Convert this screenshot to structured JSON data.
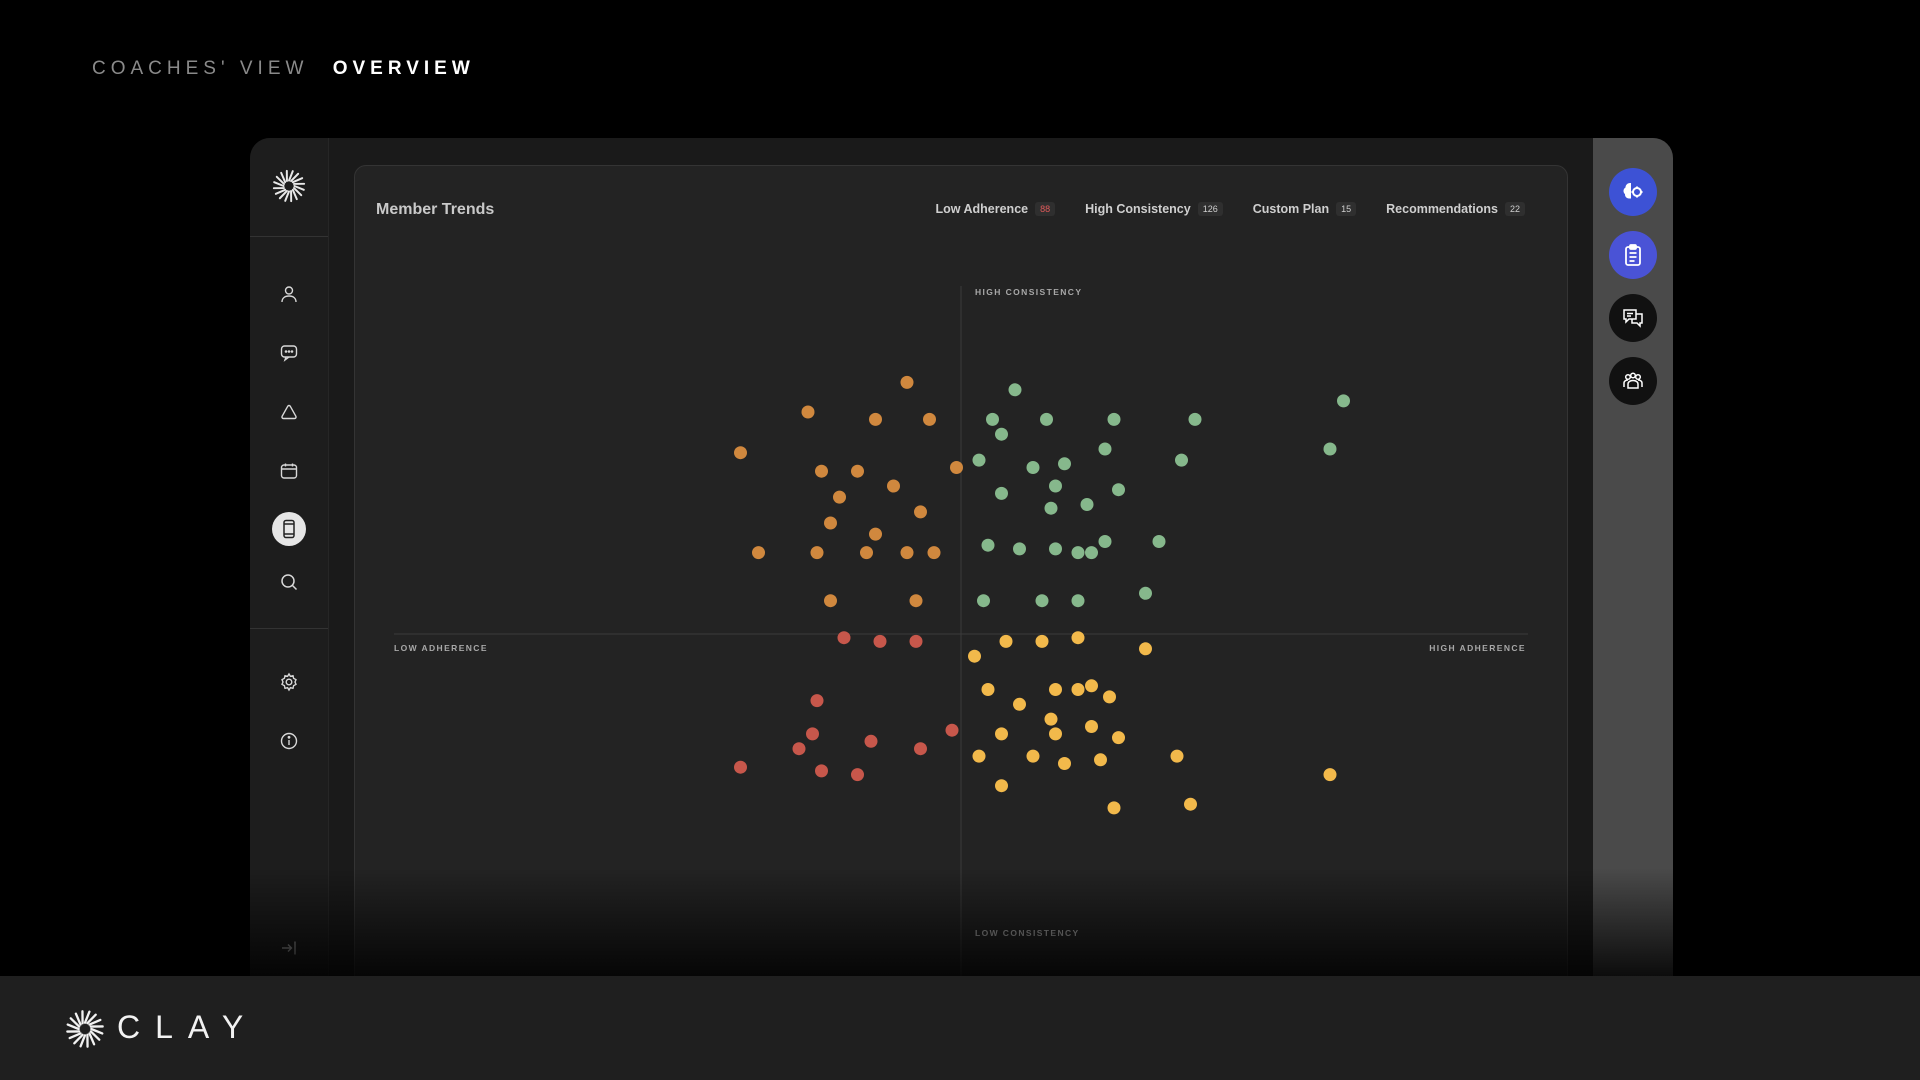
{
  "header": {
    "section": "COACHES' VIEW",
    "page": "OVERVIEW"
  },
  "brand": {
    "name": "CLAY"
  },
  "nav": {
    "items": [
      "profile-icon",
      "chat-icon",
      "alert-triangle-icon",
      "calendar-icon",
      "mobile-phone-icon",
      "search-icon",
      "settings-icon",
      "info-icon",
      "sign-in-icon"
    ],
    "active": "mobile-phone-icon"
  },
  "panel": {
    "title": "Member Trends",
    "filters": [
      {
        "label": "Low Adherence",
        "count": "88",
        "count_color": "#e05a5a"
      },
      {
        "label": "High Consistency",
        "count": "126",
        "count_color": "#cfcfcf"
      },
      {
        "label": "Custom Plan",
        "count": "15",
        "count_color": "#cfcfcf"
      },
      {
        "label": "Recommendations",
        "count": "22",
        "count_color": "#cfcfcf"
      }
    ]
  },
  "right_actions": [
    {
      "icon": "brain-gear-icon",
      "bg": "#3d52d5"
    },
    {
      "icon": "clipboard-icon",
      "bg": "#4a53d6"
    },
    {
      "icon": "conversation-icon",
      "bg": "#111111"
    },
    {
      "icon": "group-icon",
      "bg": "#111111"
    }
  ],
  "colors": {
    "green": "#86b88c",
    "orange": "#d0883e",
    "red": "#c7574b",
    "yellow": "#f2b94b",
    "accent_blue": "#4a53d6"
  },
  "chart_data": {
    "type": "scatter",
    "axis_labels": {
      "top": "HIGH CONSISTENCY",
      "bottom": "LOW CONSISTENCY",
      "left": "LOW ADHERENCE",
      "right": "HIGH ADHERENCE"
    },
    "xlim": [
      -10,
      10
    ],
    "ylim": [
      -10,
      10
    ],
    "series": [
      {
        "quadrant": "high-consistency-low-adherence",
        "color": "#d0883e",
        "points": [
          [
            -1.2,
            6.8
          ],
          [
            -3.4,
            6.0
          ],
          [
            -1.9,
            5.8
          ],
          [
            -0.7,
            5.8
          ],
          [
            -4.9,
            4.9
          ],
          [
            -3.1,
            4.4
          ],
          [
            -2.3,
            4.4
          ],
          [
            -1.5,
            4.0
          ],
          [
            -2.7,
            3.7
          ],
          [
            -0.9,
            3.3
          ],
          [
            -2.9,
            3.0
          ],
          [
            -1.9,
            2.7
          ],
          [
            -0.1,
            4.5
          ],
          [
            -4.5,
            2.2
          ],
          [
            -3.2,
            2.2
          ],
          [
            -2.1,
            2.2
          ],
          [
            -1.2,
            2.2
          ],
          [
            -0.6,
            2.2
          ],
          [
            -2.9,
            0.9
          ],
          [
            -1.0,
            0.9
          ]
        ]
      },
      {
        "quadrant": "high-consistency-high-adherence",
        "color": "#86b88c",
        "points": [
          [
            1.2,
            6.6
          ],
          [
            0.7,
            5.8
          ],
          [
            0.9,
            5.4
          ],
          [
            1.9,
            5.8
          ],
          [
            3.4,
            5.8
          ],
          [
            5.2,
            5.8
          ],
          [
            3.2,
            5.0
          ],
          [
            1.6,
            4.5
          ],
          [
            2.3,
            4.6
          ],
          [
            4.9,
            4.7
          ],
          [
            0.4,
            4.7
          ],
          [
            2.1,
            4.0
          ],
          [
            0.9,
            3.8
          ],
          [
            3.5,
            3.9
          ],
          [
            2.8,
            3.5
          ],
          [
            2.0,
            3.4
          ],
          [
            0.6,
            2.4
          ],
          [
            1.3,
            2.3
          ],
          [
            2.1,
            2.3
          ],
          [
            2.6,
            2.2
          ],
          [
            2.9,
            2.2
          ],
          [
            3.2,
            2.5
          ],
          [
            4.4,
            2.5
          ],
          [
            0.5,
            0.9
          ],
          [
            1.8,
            0.9
          ],
          [
            2.6,
            0.9
          ],
          [
            4.1,
            1.1
          ],
          [
            8.5,
            6.3
          ],
          [
            8.2,
            5.0
          ]
        ]
      },
      {
        "quadrant": "low-consistency-low-adherence",
        "color": "#c7574b",
        "points": [
          [
            -2.6,
            -0.1
          ],
          [
            -1.8,
            -0.2
          ],
          [
            -1.0,
            -0.2
          ],
          [
            -3.2,
            -1.8
          ],
          [
            -2.0,
            -2.9
          ],
          [
            -3.3,
            -2.7
          ],
          [
            -0.2,
            -2.6
          ],
          [
            -0.9,
            -3.1
          ],
          [
            -3.6,
            -3.1
          ],
          [
            -4.9,
            -3.6
          ],
          [
            -3.1,
            -3.7
          ],
          [
            -2.3,
            -3.8
          ]
        ]
      },
      {
        "quadrant": "low-consistency-high-adherence",
        "color": "#f2b94b",
        "points": [
          [
            1.0,
            -0.2
          ],
          [
            1.8,
            -0.2
          ],
          [
            2.6,
            -0.1
          ],
          [
            4.1,
            -0.4
          ],
          [
            0.3,
            -0.6
          ],
          [
            0.6,
            -1.5
          ],
          [
            1.3,
            -1.9
          ],
          [
            2.1,
            -1.5
          ],
          [
            2.6,
            -1.5
          ],
          [
            2.9,
            -1.4
          ],
          [
            3.3,
            -1.7
          ],
          [
            2.0,
            -2.3
          ],
          [
            0.9,
            -2.7
          ],
          [
            2.1,
            -2.7
          ],
          [
            2.9,
            -2.5
          ],
          [
            3.5,
            -2.8
          ],
          [
            0.4,
            -3.3
          ],
          [
            1.6,
            -3.3
          ],
          [
            2.3,
            -3.5
          ],
          [
            3.1,
            -3.4
          ],
          [
            4.8,
            -3.3
          ],
          [
            0.9,
            -4.1
          ],
          [
            3.4,
            -4.7
          ],
          [
            5.1,
            -4.6
          ],
          [
            8.2,
            -3.8
          ]
        ]
      }
    ]
  }
}
